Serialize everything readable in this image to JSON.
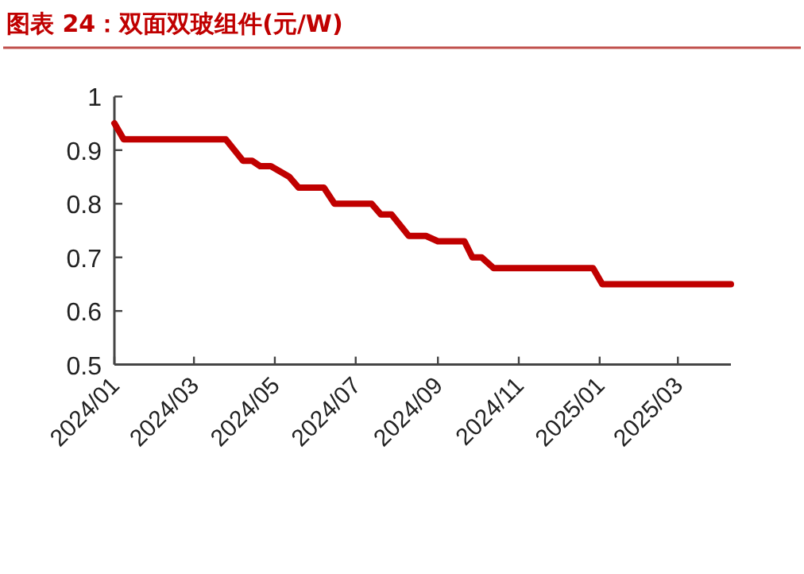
{
  "chart_data": {
    "type": "line",
    "title": "图表 24：双面双玻组件(元/W)",
    "x": [
      "2024-01-01",
      "2024-01-08",
      "2024-03-25",
      "2024-04-07",
      "2024-04-14",
      "2024-04-20",
      "2024-04-28",
      "2024-05-12",
      "2024-05-19",
      "2024-06-07",
      "2024-06-15",
      "2024-07-13",
      "2024-07-20",
      "2024-07-28",
      "2024-08-10",
      "2024-08-23",
      "2024-09-01",
      "2024-09-21",
      "2024-09-27",
      "2024-10-04",
      "2024-10-13",
      "2024-12-27",
      "2025-01-03",
      "2025-04-10"
    ],
    "series": [
      {
        "color": "#c00000",
        "values": [
          0.95,
          0.92,
          0.92,
          0.88,
          0.88,
          0.87,
          0.87,
          0.85,
          0.83,
          0.83,
          0.8,
          0.8,
          0.78,
          0.78,
          0.74,
          0.74,
          0.73,
          0.73,
          0.7,
          0.7,
          0.68,
          0.68,
          0.65,
          0.65
        ]
      }
    ],
    "xlim": [
      "2024-01-01",
      "2025-04-10"
    ],
    "xticks": [
      {
        "value": "2024-01-01",
        "label": "2024/01"
      },
      {
        "value": "2024-03-01",
        "label": "2024/03"
      },
      {
        "value": "2024-05-01",
        "label": "2024/05"
      },
      {
        "value": "2024-07-01",
        "label": "2024/07"
      },
      {
        "value": "2024-09-01",
        "label": "2024/09"
      },
      {
        "value": "2024-11-01",
        "label": "2024/11"
      },
      {
        "value": "2025-01-01",
        "label": "2025/01"
      },
      {
        "value": "2025-03-01",
        "label": "2025/03"
      }
    ],
    "ylim": [
      0.5,
      1
    ],
    "yticks": [
      0.5,
      0.6,
      0.7,
      0.8,
      0.9,
      1
    ],
    "grid": false,
    "marker": "none",
    "line_style": "solid"
  }
}
